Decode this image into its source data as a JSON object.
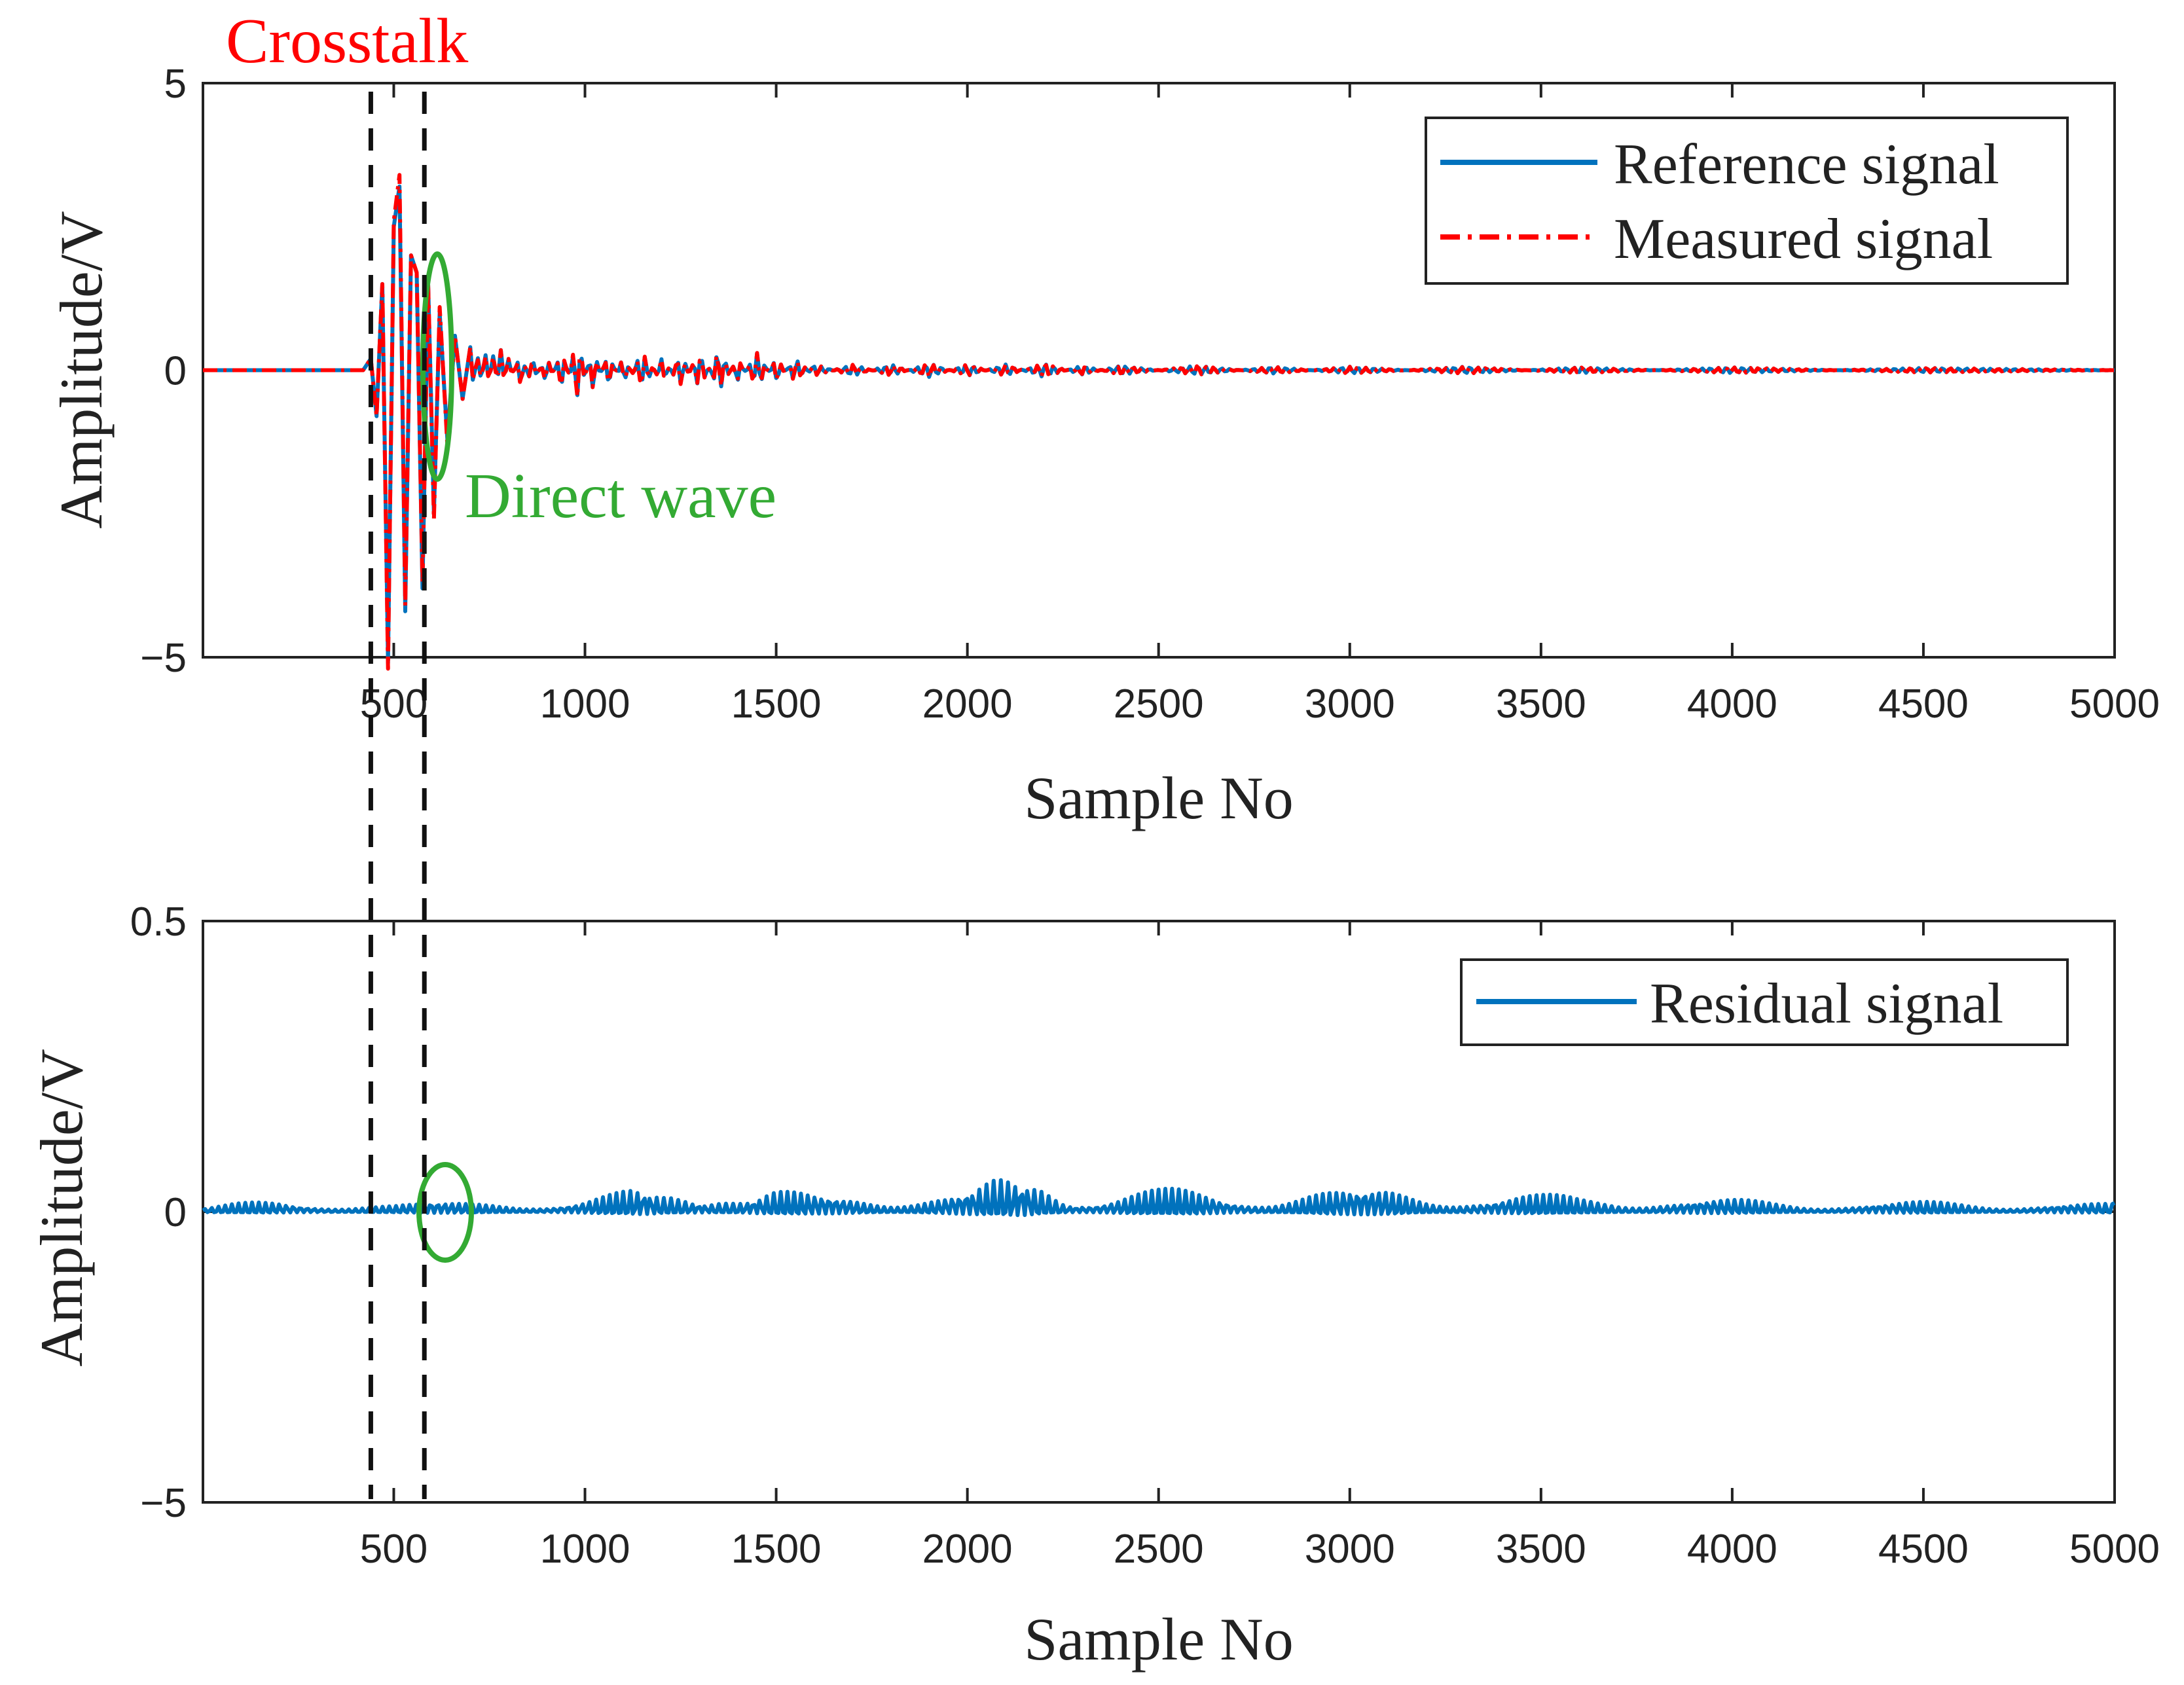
{
  "chart_data": [
    {
      "type": "line",
      "panel": "top",
      "xlabel": "Sample No",
      "ylabel": "Amplitude/V",
      "xlim": [
        1,
        5000
      ],
      "ylim": [
        -5,
        5
      ],
      "x_ticks": [
        500,
        1000,
        1500,
        2000,
        2500,
        3000,
        3500,
        4000,
        4500,
        5000
      ],
      "y_ticks": [
        -5,
        0,
        5
      ],
      "y_tick_labels": [
        "−5",
        "0",
        "5"
      ],
      "legend_position": "top-right",
      "series": [
        {
          "name": "Reference signal",
          "color": "#0072BD",
          "style": "solid",
          "x": [
            1,
            420,
            440,
            455,
            470,
            485,
            500,
            515,
            530,
            545,
            560,
            575,
            590,
            605,
            620,
            640,
            660,
            680,
            700,
            720,
            740,
            760,
            780,
            800,
            830,
            860,
            900,
            940,
            980,
            1020,
            1060,
            1100,
            1150,
            1200,
            1250,
            1300,
            1350,
            1400,
            1450,
            1500,
            1550,
            1600,
            1700,
            1800,
            1900,
            2000,
            2100,
            2200,
            2300,
            2400,
            2600,
            2800,
            3000,
            3300,
            3600,
            4000,
            4500,
            5000
          ],
          "values": [
            0,
            0,
            0.2,
            -0.8,
            1.5,
            -5.1,
            2.5,
            3.2,
            -4.2,
            2.0,
            1.7,
            -3.8,
            1.5,
            -2.5,
            1.0,
            -1.2,
            0.6,
            -0.5,
            0.4,
            -0.3,
            0.3,
            -0.25,
            0.35,
            -0.2,
            0.25,
            -0.2,
            0.2,
            -0.3,
            0.45,
            -0.3,
            0.25,
            -0.2,
            0.3,
            -0.2,
            0.25,
            -0.3,
            0.35,
            -0.2,
            0.3,
            -0.2,
            0.2,
            -0.1,
            0.1,
            -0.1,
            0.12,
            -0.1,
            0.1,
            -0.12,
            0.08,
            -0.08,
            0.08,
            -0.06,
            0.06,
            -0.06,
            0.05,
            -0.05,
            0.04,
            0
          ]
        },
        {
          "name": "Measured signal",
          "color": "#FF0000",
          "style": "dashdot",
          "x": [
            1,
            420,
            440,
            455,
            470,
            485,
            500,
            515,
            530,
            545,
            560,
            575,
            590,
            605,
            620,
            640,
            660,
            680,
            700,
            720,
            740,
            760,
            780,
            800,
            830,
            860,
            900,
            940,
            980,
            1020,
            1060,
            1100,
            1150,
            1200,
            1250,
            1300,
            1350,
            1400,
            1450,
            1500,
            1550,
            1600,
            1700,
            1800,
            1900,
            2000,
            2100,
            2200,
            2300,
            2400,
            2600,
            2800,
            3000,
            3300,
            3600,
            4000,
            4500,
            5000
          ],
          "values": [
            0,
            0,
            0.2,
            -0.8,
            1.5,
            -5.2,
            2.6,
            3.4,
            -4.1,
            2.0,
            1.7,
            -3.7,
            1.5,
            -2.6,
            1.1,
            -1.3,
            0.6,
            -0.5,
            0.4,
            -0.3,
            0.3,
            -0.25,
            0.35,
            -0.2,
            0.25,
            -0.2,
            0.2,
            -0.3,
            0.5,
            -0.3,
            0.25,
            -0.2,
            0.3,
            -0.2,
            0.25,
            -0.3,
            0.35,
            -0.2,
            0.3,
            -0.2,
            0.2,
            -0.1,
            0.1,
            -0.1,
            0.12,
            -0.1,
            0.1,
            -0.12,
            0.08,
            -0.08,
            0.08,
            -0.06,
            0.06,
            -0.06,
            0.05,
            -0.05,
            0.04,
            0
          ]
        }
      ],
      "annotations": [
        {
          "text": "Crosstalk",
          "color": "#FF0000",
          "x": 520
        },
        {
          "text": "Direct wave",
          "color": "#33AA33",
          "x": 600,
          "y": 0
        }
      ]
    },
    {
      "type": "line",
      "panel": "bottom",
      "xlabel": "Sample No",
      "ylabel": "Amplitude/V",
      "xlim": [
        1,
        5000
      ],
      "ylim": [
        -5,
        0.5
      ],
      "x_ticks": [
        500,
        1000,
        1500,
        2000,
        2500,
        3000,
        3500,
        4000,
        4500,
        5000
      ],
      "y_ticks": [
        -5,
        0,
        0.5
      ],
      "y_tick_labels": [
        "−5",
        "0",
        "0.5"
      ],
      "legend_position": "top-right",
      "series": [
        {
          "name": "Residual signal",
          "color": "#0072BD",
          "style": "solid",
          "x": [
            1,
            100,
            200,
            300,
            400,
            500,
            600,
            700,
            800,
            900,
            1000,
            1100,
            1150,
            1200,
            1250,
            1300,
            1350,
            1400,
            1450,
            1500,
            1600,
            1700,
            1800,
            1900,
            2000,
            2050,
            2100,
            2150,
            2200,
            2250,
            2300,
            2400,
            2500,
            2600,
            2700,
            2800,
            2900,
            3000,
            3100,
            3200,
            3300,
            3400,
            3500,
            3600,
            3800,
            4000,
            4200,
            4400,
            4600,
            4800,
            5000
          ],
          "values": [
            0.01,
            0.015,
            0.02,
            0.02,
            0.02,
            0.015,
            0.02,
            0.02,
            0.025,
            0.02,
            0.025,
            0.035,
            0.05,
            0.04,
            0.05,
            0.07,
            0.065,
            0.04,
            0.045,
            0.04,
            0.035,
            0.04,
            0.035,
            0.04,
            0.045,
            0.05,
            0.06,
            0.08,
            0.07,
            0.05,
            0.05,
            0.045,
            0.04,
            0.04,
            0.04,
            0.04,
            0.045,
            0.045,
            0.05,
            0.04,
            0.04,
            0.035,
            0.03,
            0.03,
            0.03,
            0.025,
            0.02,
            0.02,
            0.02,
            0.02,
            0.015
          ]
        }
      ],
      "annotations": [
        {
          "text": "",
          "color": "#33AA33",
          "x": 620,
          "y": 0
        }
      ]
    }
  ],
  "crosstalk_window": {
    "start": 440,
    "end": 580
  },
  "colors": {
    "reference": "#0072BD",
    "measured": "#FF0000",
    "annotation_green": "#33AA33",
    "crosstalk_red": "#FF0000"
  }
}
